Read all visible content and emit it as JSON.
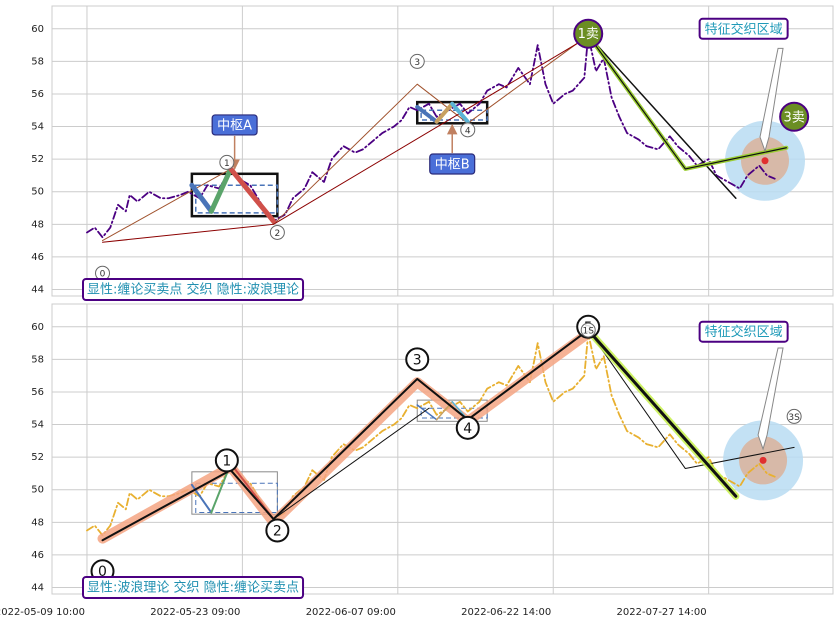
{
  "chart_data": [
    {
      "type": "line",
      "xlim": [
        -9,
        192
      ],
      "ylim": [
        43.6,
        61.4
      ],
      "yticks": [
        44,
        46,
        48,
        50,
        52,
        54,
        56,
        58,
        60
      ],
      "grid": true,
      "x": [
        0,
        2,
        4,
        6,
        8,
        10,
        11,
        13,
        16,
        19,
        21,
        24,
        26,
        29,
        31,
        34,
        37,
        39,
        42,
        45,
        48,
        51,
        53,
        56,
        58,
        61,
        63,
        66,
        69,
        71,
        74,
        76,
        79,
        81,
        83,
        85,
        88,
        90,
        93,
        96,
        98,
        101,
        103,
        106,
        108,
        111,
        114,
        116,
        118,
        120,
        123,
        125,
        128,
        129,
        131,
        133,
        135,
        137,
        139,
        142,
        144,
        147,
        150,
        152,
        155,
        157,
        160,
        162,
        165,
        168,
        170,
        173,
        175,
        177
      ],
      "series": [
        {
          "color": "#4b0082",
          "width": 1.8,
          "dash": "dashdot",
          "values": [
            47.5,
            47.8,
            47.2,
            47.8,
            49.2,
            48.8,
            49.8,
            49.4,
            50.0,
            49.6,
            49.6,
            49.8,
            50.0,
            49.6,
            50.4,
            50.2,
            51.4,
            50.8,
            50.4,
            49.2,
            48.2,
            48.6,
            49.6,
            50.2,
            51.2,
            50.6,
            52.0,
            52.8,
            52.4,
            52.6,
            53.2,
            53.6,
            54.0,
            54.4,
            55.2,
            55.0,
            55.4,
            54.6,
            55.0,
            55.4,
            54.8,
            55.4,
            56.2,
            56.6,
            56.4,
            57.6,
            56.6,
            59.0,
            56.6,
            55.4,
            56.0,
            56.2,
            57.0,
            59.6,
            57.4,
            58.2,
            55.8,
            54.6,
            53.6,
            53.2,
            52.8,
            52.6,
            53.4,
            52.8,
            52.2,
            51.6,
            52.0,
            51.0,
            50.6,
            50.2,
            51.0,
            51.6,
            51.0,
            50.8
          ]
        },
        {
          "color": "#a0522d",
          "width": 1,
          "x": [
            4,
            37,
            48,
            85,
            98,
            129
          ],
          "values": [
            47.0,
            51.4,
            48.0,
            56.6,
            54.2,
            59.6
          ]
        },
        {
          "color": "#8b0000",
          "width": 1,
          "x": [
            4,
            48,
            129
          ],
          "values": [
            46.9,
            48.0,
            59.5
          ]
        },
        {
          "color": "#4a74b8",
          "width": 5,
          "x": [
            27,
            32
          ],
          "values": [
            50.4,
            48.8
          ]
        },
        {
          "color": "#5aa46a",
          "width": 5,
          "x": [
            32,
            37
          ],
          "values": [
            48.8,
            51.4
          ]
        },
        {
          "color": "#d0504a",
          "width": 5,
          "x": [
            37,
            48
          ],
          "values": [
            51.4,
            48.2
          ]
        },
        {
          "color": "#4a74b8",
          "width": 4,
          "x": [
            85,
            90
          ],
          "values": [
            55.2,
            54.3
          ]
        },
        {
          "color": "#c8a060",
          "width": 4,
          "x": [
            90,
            94
          ],
          "values": [
            54.3,
            55.4
          ]
        },
        {
          "color": "#5ab4d6",
          "width": 4,
          "x": [
            94,
            98
          ],
          "values": [
            55.4,
            54.3
          ]
        },
        {
          "color": "#111111",
          "width": 1.5,
          "x": [
            129,
            167
          ],
          "values": [
            59.6,
            49.6
          ]
        },
        {
          "color": "#9acd32",
          "width": 4,
          "x": [
            129,
            154,
            180
          ],
          "values": [
            59.6,
            51.4,
            52.7
          ]
        },
        {
          "color": "#111111",
          "width": 1.2,
          "x": [
            129,
            154,
            180
          ],
          "values": [
            59.6,
            51.4,
            52.7
          ]
        }
      ],
      "boxes": [
        {
          "x": [
            27,
            49
          ],
          "y": [
            48.5,
            51.1
          ],
          "color": "#111111",
          "width": 2.5
        },
        {
          "x": [
            28,
            49
          ],
          "y": [
            48.7,
            50.4
          ],
          "color": "#4a74b8",
          "width": 1.5,
          "dash": true
        },
        {
          "x": [
            85,
            103
          ],
          "y": [
            54.2,
            55.5
          ],
          "color": "#111111",
          "width": 2.5
        },
        {
          "x": [
            86,
            103
          ],
          "y": [
            54.4,
            55.0
          ],
          "color": "#4a74b8",
          "width": 1.5,
          "dash": true
        }
      ],
      "zone": {
        "x": 174.5,
        "y": 51.9
      },
      "points": [
        {
          "label": "0",
          "x": 4,
          "y": 45.0,
          "style": "small"
        },
        {
          "label": "1",
          "x": 36,
          "y": 51.8,
          "style": "small"
        },
        {
          "label": "2",
          "x": 49,
          "y": 47.5,
          "style": "small"
        },
        {
          "label": "3",
          "x": 85,
          "y": 58.0,
          "style": "small"
        },
        {
          "label": "4",
          "x": 98,
          "y": 53.8,
          "style": "small"
        },
        {
          "label": "1卖",
          "x": 129,
          "y": 59.7,
          "style": "sell"
        },
        {
          "label": "3卖",
          "x": 182,
          "y": 54.6,
          "style": "sell"
        }
      ],
      "callouts": [
        {
          "text": "中枢A",
          "x": 38,
          "y": 54.1,
          "target": [
            38,
            51.4
          ],
          "kind": "box"
        },
        {
          "text": "中枢B",
          "x": 94,
          "y": 51.7,
          "target": [
            94,
            54.1
          ],
          "kind": "box"
        },
        {
          "text": "特征交织区域",
          "x": 169,
          "y": 60.0,
          "target": [
            174.5,
            52.5
          ],
          "tail": [
            178.5,
            58.8
          ],
          "kind": "zone"
        }
      ],
      "footnote": "显性:缠论买卖点 交织 隐性:波浪理论"
    },
    {
      "type": "line",
      "xlim": [
        -9,
        192
      ],
      "ylim": [
        43.6,
        61.4
      ],
      "yticks": [
        44,
        46,
        48,
        50,
        52,
        54,
        56,
        58,
        60
      ],
      "grid": true,
      "xticks": [
        {
          "value": 0,
          "label": "2022-05-09 10:00"
        },
        {
          "value": 40,
          "label": "2022-05-23 09:00"
        },
        {
          "value": 80,
          "label": "2022-06-07 09:00"
        },
        {
          "value": 120,
          "label": "2022-06-22 14:00"
        },
        {
          "value": 160,
          "label": "2022-07-27 14:00"
        }
      ],
      "x": [
        0,
        2,
        4,
        6,
        8,
        10,
        11,
        13,
        16,
        19,
        21,
        24,
        26,
        29,
        31,
        34,
        37,
        39,
        42,
        45,
        48,
        51,
        53,
        56,
        58,
        61,
        63,
        66,
        69,
        71,
        74,
        76,
        79,
        81,
        83,
        85,
        88,
        90,
        93,
        96,
        98,
        101,
        103,
        106,
        108,
        111,
        114,
        116,
        118,
        120,
        123,
        125,
        128,
        129,
        131,
        133,
        135,
        137,
        139,
        142,
        144,
        147,
        150,
        152,
        155,
        157,
        160,
        162,
        165,
        168,
        170,
        173,
        175,
        177
      ],
      "series": [
        {
          "color": "#e8b030",
          "width": 1.8,
          "dash": "dashdot",
          "values": [
            47.5,
            47.8,
            47.2,
            47.8,
            49.2,
            48.8,
            49.8,
            49.4,
            50.0,
            49.6,
            49.6,
            49.8,
            50.0,
            49.6,
            50.4,
            50.2,
            51.4,
            50.8,
            50.4,
            49.2,
            48.2,
            48.6,
            49.6,
            50.2,
            51.2,
            50.6,
            52.0,
            52.8,
            52.4,
            52.6,
            53.2,
            53.6,
            54.0,
            54.4,
            55.2,
            55.0,
            55.4,
            54.6,
            55.0,
            55.4,
            54.8,
            55.4,
            56.2,
            56.6,
            56.4,
            57.6,
            56.6,
            59.0,
            56.6,
            55.4,
            56.0,
            56.2,
            57.0,
            59.6,
            57.4,
            58.2,
            55.8,
            54.6,
            53.6,
            53.2,
            52.8,
            52.6,
            53.4,
            52.8,
            52.2,
            51.6,
            52.0,
            51.0,
            50.6,
            50.2,
            51.0,
            51.6,
            51.0,
            50.8
          ]
        },
        {
          "color": "#f4a582",
          "width": 10,
          "x": [
            4,
            37,
            48,
            85,
            98,
            129
          ],
          "values": [
            47.0,
            51.4,
            48.0,
            56.6,
            54.2,
            59.6
          ]
        },
        {
          "color": "#4a74b8",
          "width": 2,
          "x": [
            27,
            32
          ],
          "values": [
            50.3,
            48.6
          ]
        },
        {
          "color": "#5aa46a",
          "width": 2,
          "x": [
            32,
            37
          ],
          "values": [
            48.6,
            51.6
          ]
        },
        {
          "color": "#d0504a",
          "width": 2,
          "x": [
            37,
            48
          ],
          "values": [
            51.6,
            48.2
          ]
        },
        {
          "color": "#4a74b8",
          "width": 1.5,
          "x": [
            85,
            90
          ],
          "values": [
            55.2,
            54.3
          ]
        },
        {
          "color": "#c8a060",
          "width": 1.5,
          "x": [
            90,
            94
          ],
          "values": [
            54.3,
            55.4
          ]
        },
        {
          "color": "#5ab4d6",
          "width": 1.5,
          "x": [
            94,
            98
          ],
          "values": [
            55.4,
            54.3
          ]
        },
        {
          "color": "#111111",
          "width": 2,
          "x": [
            4,
            37,
            48,
            85,
            98,
            129
          ],
          "values": [
            46.9,
            51.2,
            48.2,
            56.8,
            54.3,
            59.8
          ]
        },
        {
          "color": "#111111",
          "width": 1,
          "x": [
            48,
            88
          ],
          "values": [
            48.2,
            55.0
          ]
        },
        {
          "color": "#111111",
          "width": 1,
          "x": [
            129,
            154,
            182
          ],
          "values": [
            59.8,
            51.3,
            52.6
          ]
        },
        {
          "color": "#c6f04a",
          "width": 7,
          "x": [
            129,
            167
          ],
          "values": [
            59.8,
            49.6
          ]
        },
        {
          "color": "#111111",
          "width": 3,
          "x": [
            129,
            167
          ],
          "values": [
            59.8,
            49.6
          ]
        }
      ],
      "boxes": [
        {
          "x": [
            27,
            49
          ],
          "y": [
            48.5,
            51.1
          ],
          "color": "#8a8a8a",
          "width": 1
        },
        {
          "x": [
            28,
            49
          ],
          "y": [
            48.6,
            50.4
          ],
          "color": "#4a74b8",
          "width": 1,
          "dash": true
        },
        {
          "x": [
            85,
            103
          ],
          "y": [
            54.2,
            55.5
          ],
          "color": "#8a8a8a",
          "width": 1
        },
        {
          "x": [
            86,
            103
          ],
          "y": [
            54.4,
            55.0
          ],
          "color": "#4a74b8",
          "width": 1,
          "dash": true
        }
      ],
      "zone": {
        "x": 174,
        "y": 51.8
      },
      "points": [
        {
          "label": "0",
          "x": 4,
          "y": 45.0,
          "style": "big"
        },
        {
          "label": "1",
          "x": 36,
          "y": 51.8,
          "style": "big"
        },
        {
          "label": "2",
          "x": 49,
          "y": 47.5,
          "style": "big"
        },
        {
          "label": "3",
          "x": 85,
          "y": 58.0,
          "style": "big"
        },
        {
          "label": "4",
          "x": 98,
          "y": 53.8,
          "style": "big"
        },
        {
          "label": "5",
          "x": 129,
          "y": 60.0,
          "style": "big"
        },
        {
          "label": "1S",
          "x": 129,
          "y": 59.8,
          "style": "small"
        },
        {
          "label": "3S",
          "x": 182,
          "y": 54.5,
          "style": "small"
        }
      ],
      "callouts": [
        {
          "text": "特征交织区域",
          "x": 169,
          "y": 59.7,
          "target": [
            174,
            52.5
          ],
          "tail": [
            178.5,
            58.7
          ],
          "kind": "zone"
        }
      ],
      "footnote": "显性:波浪理论 交织 隐性:缠论买卖点"
    }
  ]
}
